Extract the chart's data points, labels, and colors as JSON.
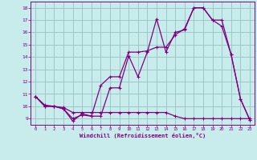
{
  "xlabel": "Windchill (Refroidissement éolien,°C)",
  "bg_color": "#c8ecec",
  "line_color": "#800080",
  "grid_color": "#9dc8c8",
  "x_ticks": [
    0,
    1,
    2,
    3,
    4,
    5,
    6,
    7,
    8,
    9,
    10,
    11,
    12,
    13,
    14,
    15,
    16,
    17,
    18,
    19,
    20,
    21,
    22,
    23
  ],
  "y_ticks": [
    9,
    10,
    11,
    12,
    13,
    14,
    15,
    16,
    17,
    18
  ],
  "xlim": [
    -0.5,
    23.5
  ],
  "ylim": [
    8.5,
    18.5
  ],
  "line1": {
    "x": [
      0,
      1,
      2,
      3,
      4,
      5,
      6,
      7,
      8,
      9,
      10,
      11,
      12,
      13,
      14,
      15,
      16,
      17,
      18,
      19,
      20,
      21,
      22,
      23
    ],
    "y": [
      10.8,
      10.0,
      10.0,
      9.8,
      8.8,
      9.4,
      9.2,
      9.2,
      11.5,
      11.5,
      14.1,
      12.4,
      14.4,
      17.1,
      14.4,
      16.0,
      16.2,
      18.0,
      18.0,
      17.0,
      17.0,
      14.2,
      10.6,
      8.9
    ]
  },
  "line2": {
    "x": [
      0,
      1,
      2,
      3,
      4,
      5,
      6,
      7,
      8,
      9,
      10,
      11,
      12,
      13,
      14,
      15,
      16,
      17,
      18,
      19,
      20,
      21,
      22,
      23
    ],
    "y": [
      10.8,
      10.0,
      10.0,
      9.8,
      9.0,
      9.3,
      9.2,
      11.7,
      12.4,
      12.4,
      14.4,
      14.4,
      14.5,
      14.8,
      14.8,
      15.8,
      16.3,
      18.0,
      18.0,
      17.0,
      16.5,
      14.2,
      10.6,
      8.9
    ]
  },
  "line3": {
    "x": [
      0,
      1,
      2,
      3,
      4,
      5,
      6,
      7,
      8,
      9,
      10,
      11,
      12,
      13,
      14,
      15,
      16,
      17,
      18,
      19,
      20,
      21,
      22,
      23
    ],
    "y": [
      10.8,
      10.1,
      10.0,
      9.9,
      9.5,
      9.5,
      9.5,
      9.5,
      9.5,
      9.5,
      9.5,
      9.5,
      9.5,
      9.5,
      9.5,
      9.2,
      9.0,
      9.0,
      9.0,
      9.0,
      9.0,
      9.0,
      9.0,
      9.0
    ]
  }
}
